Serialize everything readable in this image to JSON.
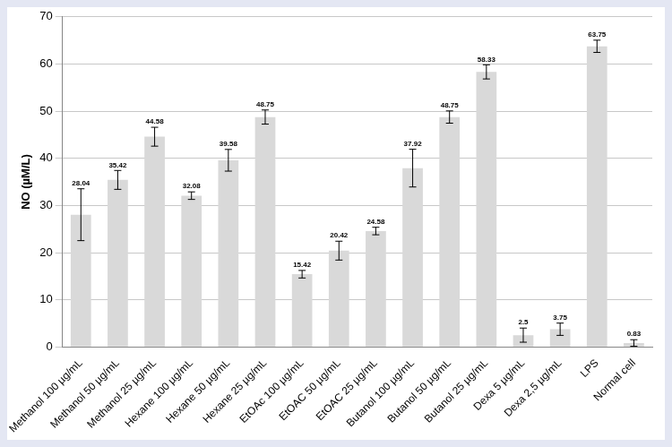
{
  "chart_data": {
    "type": "bar",
    "y_label": "NO (µM/L)",
    "categories": [
      "Methanol 100 µg/mL",
      "Methanol 50 µg/mL",
      "Methanol 25 µg/mL",
      "Hexane 100 µg/mL",
      "Hexane 50 µg/mL",
      "Hexane 25 µg/mL",
      "EtOAc 100 µg/mL",
      "EtOAC 50 µg/mL",
      "EtOAC 25 µg/mL",
      "Butanol 100 µg/mL",
      "Butanol 50 µg/mL",
      "Butanol 25 µg/mL",
      "Dexa 5 µg/mL",
      "Dexa 2,5 µg/mL",
      "LPS",
      "Normal cell"
    ],
    "values": [
      28.04,
      35.42,
      44.58,
      32.08,
      39.58,
      48.75,
      15.42,
      20.42,
      24.58,
      37.92,
      48.75,
      58.33,
      2.5,
      3.75,
      63.75,
      0.83
    ],
    "errors": [
      5.5,
      2,
      2,
      0.8,
      2.3,
      1.5,
      0.8,
      2,
      0.8,
      4,
      1.3,
      1.5,
      1.5,
      1.3,
      1.3,
      0.7
    ],
    "color": "#d9d9d9",
    "ylim": [
      0,
      70
    ],
    "yticks": [
      0,
      10,
      20,
      30,
      40,
      50,
      60,
      70
    ],
    "grid": true,
    "data_labels": true
  }
}
